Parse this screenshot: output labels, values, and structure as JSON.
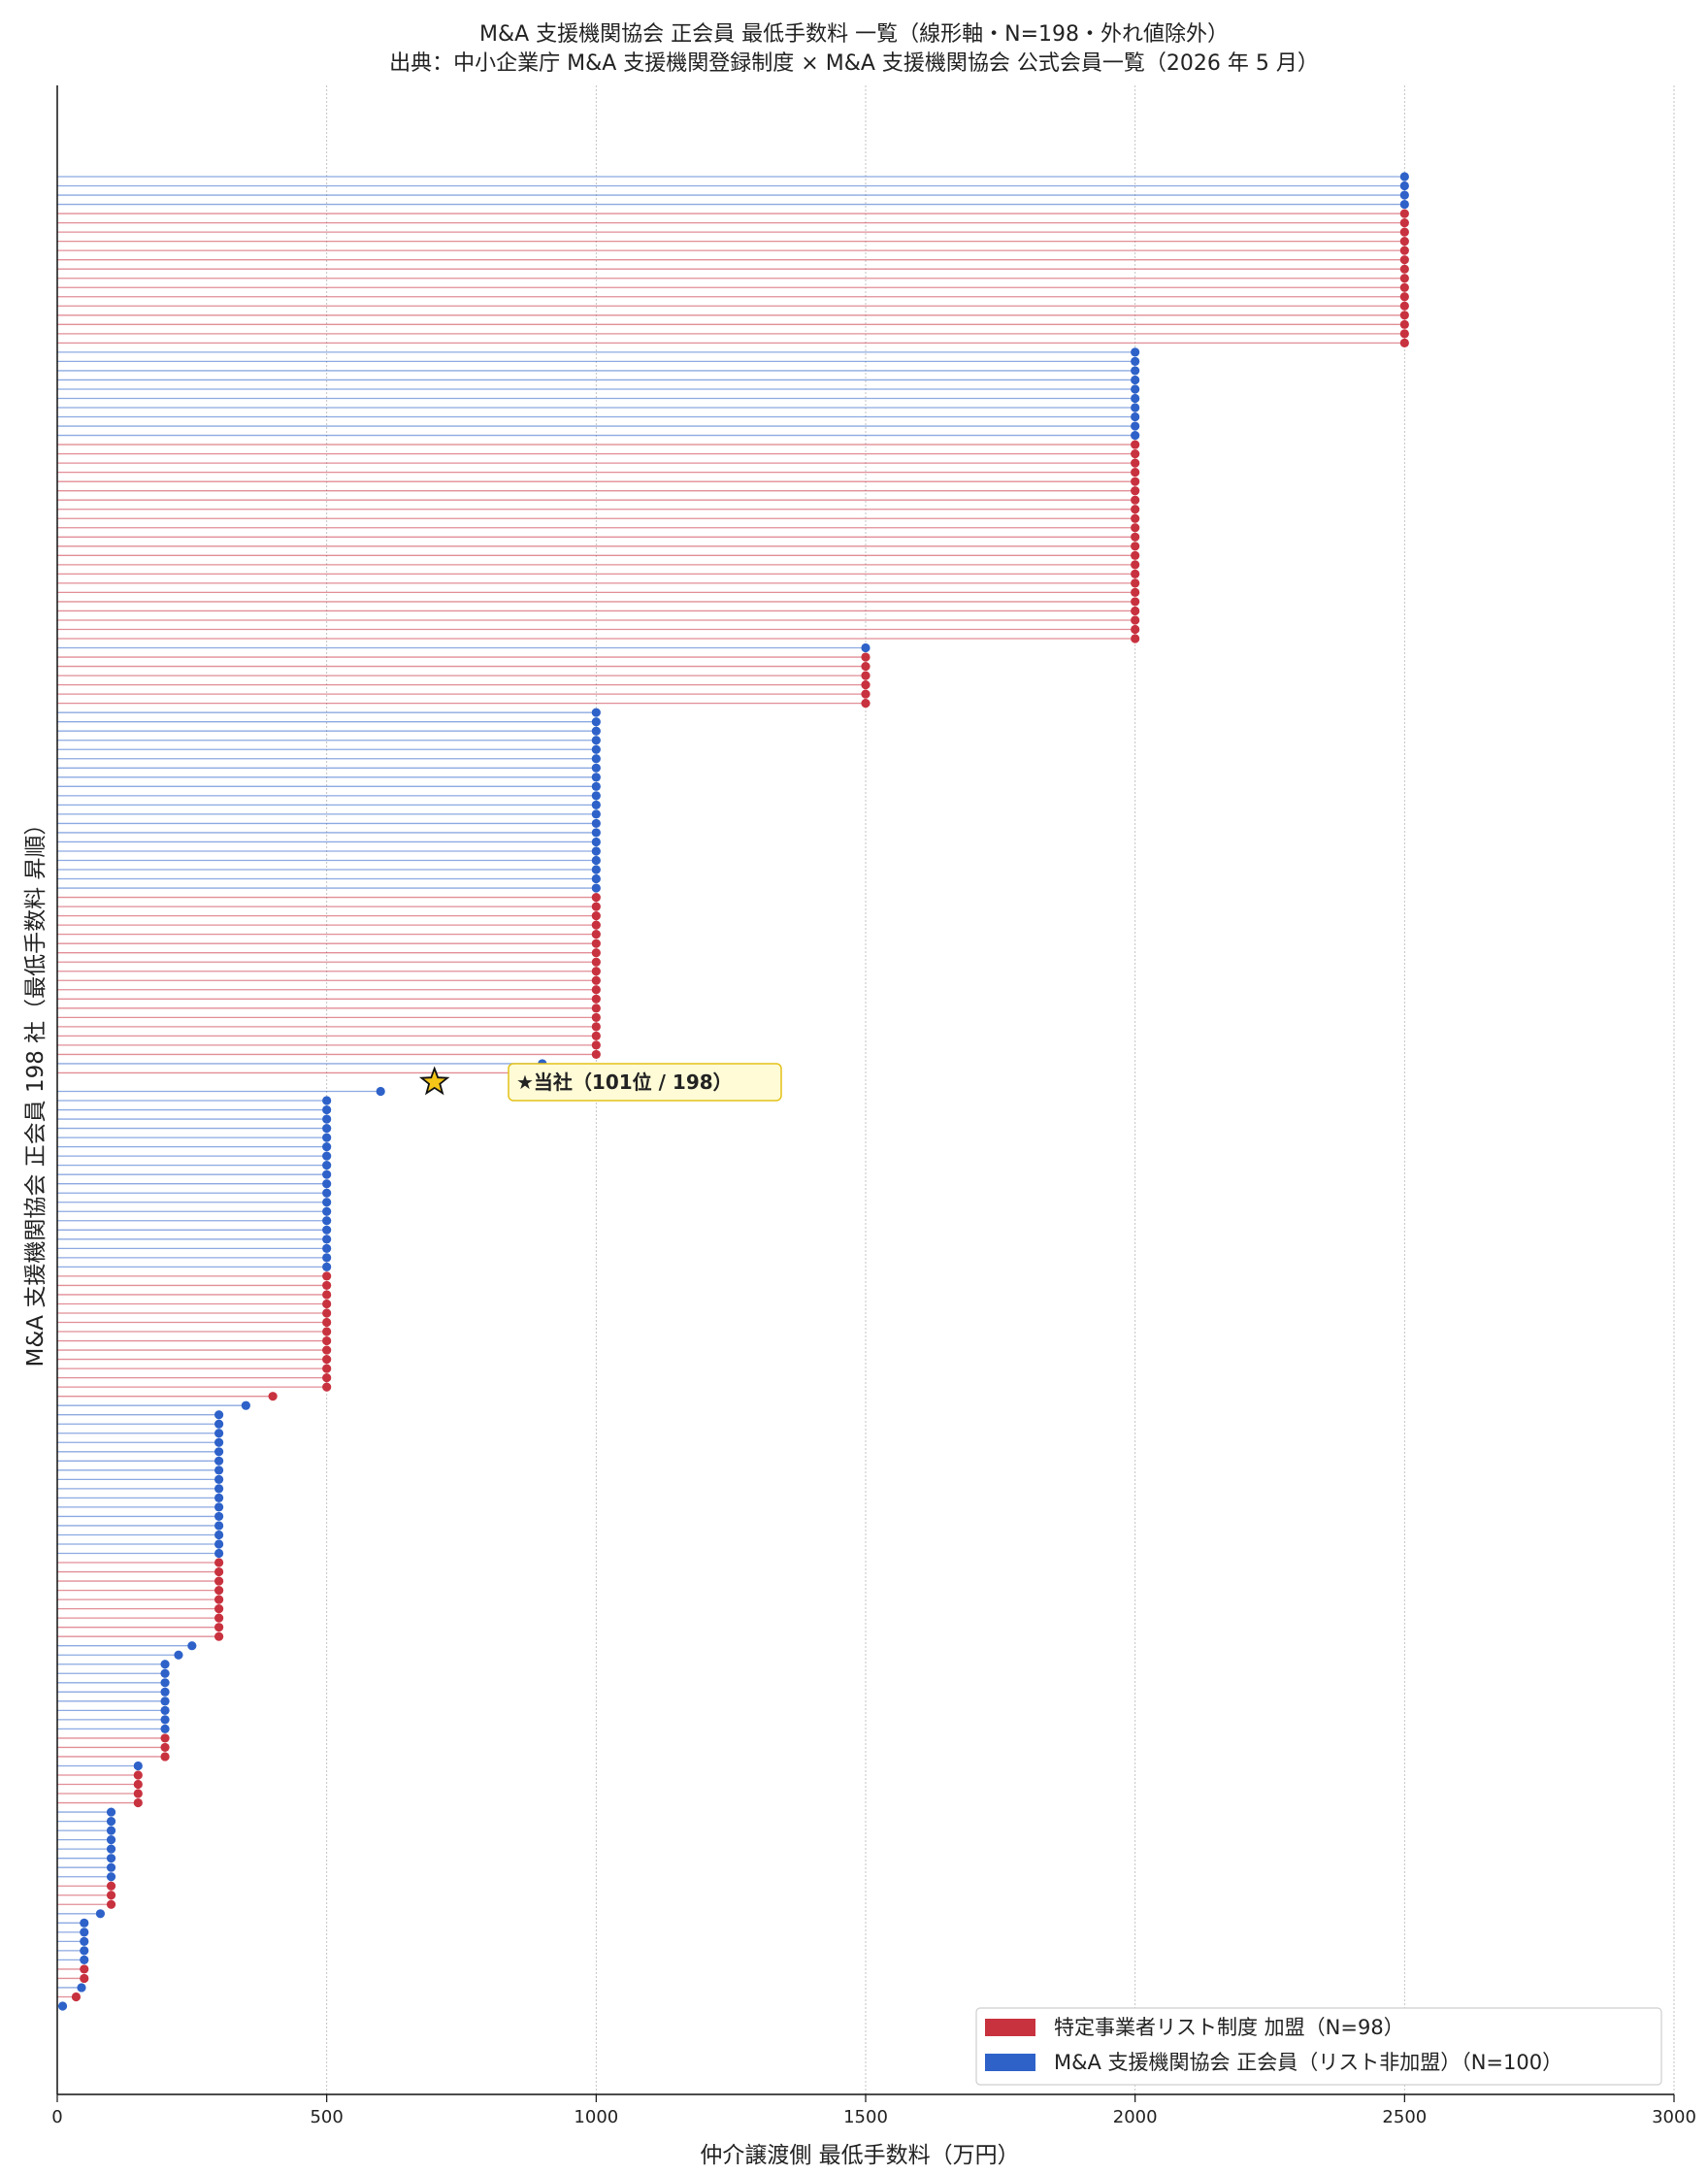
{
  "chart_data": {
    "type": "lollipop",
    "title": "M&A 支援機関協会 正会員 最低手数料 一覧（線形軸・N=198・外れ値除外）",
    "subtitle": "出典：中小企業庁 M&A 支援機関登録制度 × M&A 支援機関協会 公式会員一覧（2026 年 5 月）",
    "xlabel": "仲介譲渡側 最低手数料（万円）",
    "ylabel": "M&A 支援機関協会 正会員 198 社（最低手数料 昇順）",
    "xlim": [
      0,
      3000
    ],
    "xticks": [
      "0",
      "500",
      "1000",
      "1500",
      "2000",
      "2500",
      "3000"
    ],
    "grid": "x-only, dotted",
    "legend_position": "bottom-right",
    "colors": {
      "red": "#c8323f",
      "blue": "#2e62c9",
      "star": "#f5c518",
      "annotation_bg": "#fffbd6",
      "annotation_border": "#e3c21a"
    },
    "legend": [
      {
        "label": "特定事業者リスト制度 加盟（N=98）",
        "color": "#c8323f"
      },
      {
        "label": "M&A 支援機関協会 正会員（リスト非加盟）（N=100）",
        "color": "#2e62c9"
      }
    ],
    "highlight": {
      "rank": 101,
      "value": 700,
      "label": "★当社（101位 / 198）"
    },
    "groups_bottom_to_top": [
      {
        "value": 10,
        "red": 0,
        "blue": 1
      },
      {
        "value": 35,
        "red": 1,
        "blue": 0
      },
      {
        "value": 45,
        "red": 0,
        "blue": 1
      },
      {
        "value": 50,
        "red": 2,
        "blue": 5
      },
      {
        "value": 80,
        "red": 0,
        "blue": 1
      },
      {
        "value": 100,
        "red": 3,
        "blue": 8
      },
      {
        "value": 150,
        "red": 4,
        "blue": 1
      },
      {
        "value": 200,
        "red": 3,
        "blue": 8
      },
      {
        "value": 225,
        "red": 0,
        "blue": 1
      },
      {
        "value": 250,
        "red": 0,
        "blue": 1
      },
      {
        "value": 300,
        "red": 9,
        "blue": 16
      },
      {
        "value": 350,
        "red": 0,
        "blue": 1
      },
      {
        "value": 400,
        "red": 1,
        "blue": 0
      },
      {
        "value": 500,
        "red": 13,
        "blue": 19
      },
      {
        "value": 600,
        "red": 0,
        "blue": 1
      },
      {
        "value": 700,
        "red": 0,
        "blue": 0,
        "is_highlight": 1
      },
      {
        "value": 900,
        "red": 1,
        "blue": 1
      },
      {
        "value": 1000,
        "red": 18,
        "blue": 20
      },
      {
        "value": 1500,
        "red": 6,
        "blue": 1
      },
      {
        "value": 2000,
        "red": 22,
        "blue": 10
      },
      {
        "value": 2500,
        "red": 15,
        "blue": 4
      }
    ]
  }
}
